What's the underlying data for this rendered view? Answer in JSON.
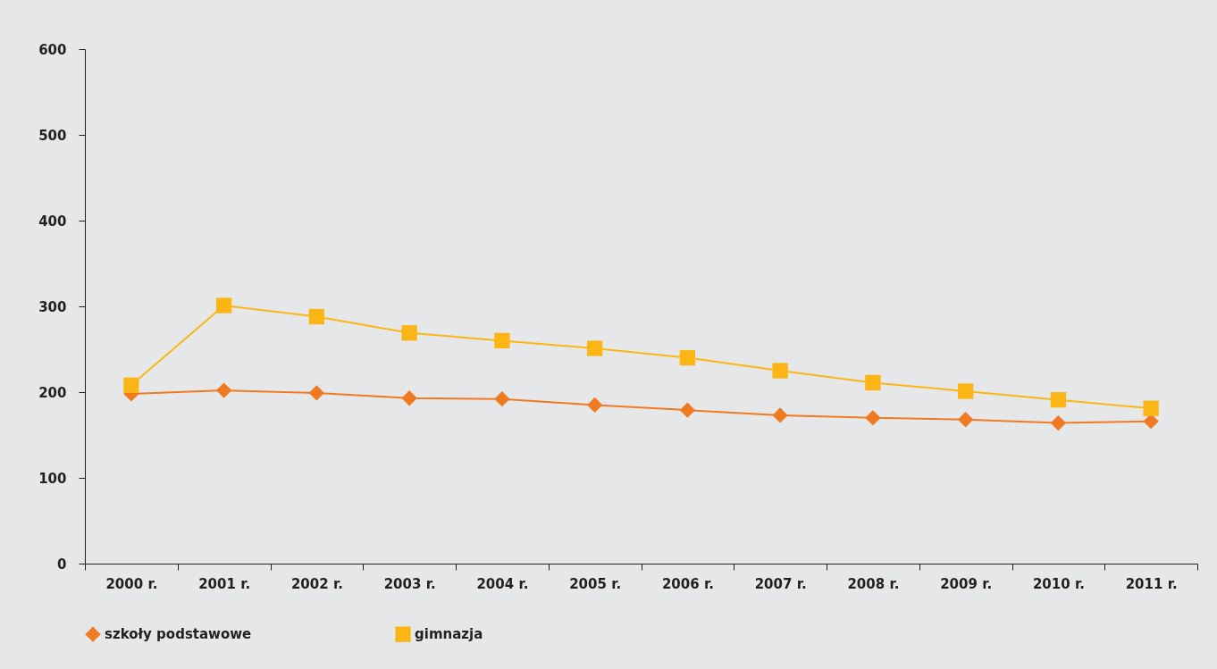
{
  "chart_data": {
    "type": "line",
    "categories": [
      "2000 r.",
      "2001 r.",
      "2002 r.",
      "2003 r.",
      "2004 r.",
      "2005 r.",
      "2006 r.",
      "2007 r.",
      "2008 r.",
      "2009 r.",
      "2010 r.",
      "2011 r."
    ],
    "series": [
      {
        "name": "szkoły podstawowe",
        "color": "#f07a22",
        "marker": "diamond",
        "values": [
          198,
          202,
          199,
          193,
          192,
          185,
          179,
          173,
          170,
          168,
          164,
          166
        ]
      },
      {
        "name": "gimnazja",
        "color": "#fbb616",
        "marker": "square",
        "values": [
          208,
          301,
          288,
          269,
          260,
          251,
          240,
          225,
          211,
          201,
          191,
          181
        ]
      }
    ],
    "ylim": [
      0,
      600
    ],
    "yticks": [
      0,
      100,
      200,
      300,
      400,
      500,
      600
    ],
    "grid": false,
    "legend": "bottom",
    "line_style": "solid"
  }
}
